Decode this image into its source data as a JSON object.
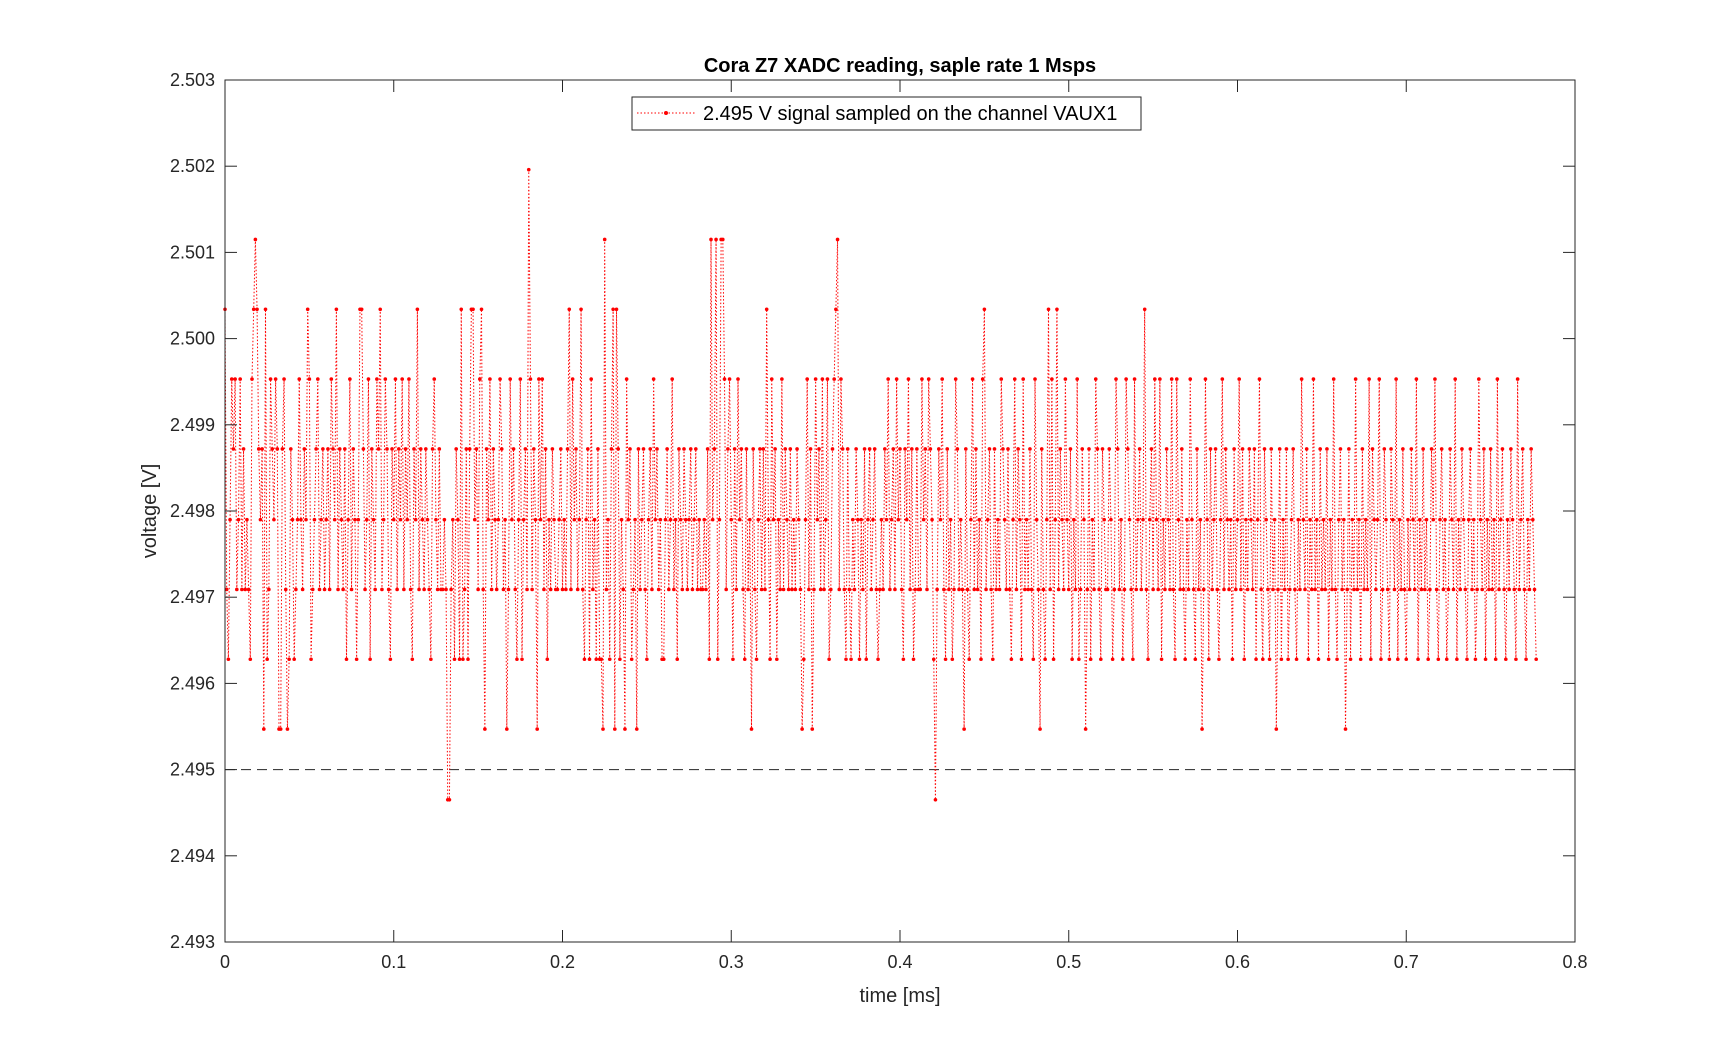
{
  "chart_data": {
    "type": "line",
    "title": "Cora Z7 XADC reading, saple rate 1 Msps",
    "xlabel": "time [ms]",
    "ylabel": "voltage [V]",
    "xlim": [
      0,
      0.8
    ],
    "ylim": [
      2.493,
      2.503
    ],
    "xticks": [
      "0",
      "0.1",
      "0.2",
      "0.3",
      "0.4",
      "0.5",
      "0.6",
      "0.7",
      "0.8"
    ],
    "yticks": [
      "2.493",
      "2.494",
      "2.495",
      "2.496",
      "2.497",
      "2.498",
      "2.499",
      "2.500",
      "2.501",
      "2.502",
      "2.503"
    ],
    "grid": false,
    "legend_position": "top-center",
    "reference_line": {
      "y": 2.495,
      "style": "dashed",
      "color": "#262626"
    },
    "series": [
      {
        "name": "2.495 V signal sampled on the channel VAUX1",
        "color": "#ff0000",
        "line_style": "dotted",
        "marker": "point",
        "x_start": 0,
        "x_step": 0.001,
        "values": [
          2.50034,
          2.49709,
          2.49628,
          2.4979,
          2.49953,
          2.49872,
          2.49953,
          2.49709,
          2.4979,
          2.49953,
          2.49709,
          2.49872,
          2.49709,
          2.4979,
          2.49709,
          2.49628,
          2.49953,
          2.50034,
          2.50115,
          2.50034,
          2.49872,
          2.4979,
          2.49872,
          2.49547,
          2.50034,
          2.49628,
          2.49709,
          2.49953,
          2.49872,
          2.4979,
          2.49953,
          2.49872,
          2.49547,
          2.49547,
          2.49872,
          2.49953,
          2.49709,
          2.49547,
          2.49628,
          2.49872,
          2.4979,
          2.49628,
          2.49709,
          2.4979,
          2.49953,
          2.4979,
          2.49709,
          2.49872,
          2.4979,
          2.50034,
          2.49953,
          2.49628,
          2.49709,
          2.4979,
          2.49872,
          2.49953,
          2.49709,
          2.4979,
          2.49872,
          2.49709,
          2.4979,
          2.49872,
          2.49709,
          2.49953,
          2.49872,
          2.4979,
          2.50034,
          2.49709,
          2.49872,
          2.4979,
          2.49709,
          2.49872,
          2.49628,
          2.4979,
          2.49953,
          2.49709,
          2.49872,
          2.4979,
          2.49628,
          2.4979,
          2.50034,
          2.50034,
          2.49872,
          2.49709,
          2.4979,
          2.49953,
          2.49628,
          2.49872,
          2.4979,
          2.49709,
          2.49953,
          2.49872,
          2.50034,
          2.49709,
          2.4979,
          2.49953,
          2.49872,
          2.49709,
          2.49628,
          2.49872,
          2.4979,
          2.49953,
          2.49709,
          2.49872,
          2.4979,
          2.49953,
          2.49709,
          2.49872,
          2.4979,
          2.49953,
          2.49709,
          2.49628,
          2.49872,
          2.4979,
          2.50034,
          2.49709,
          2.49872,
          2.4979,
          2.49709,
          2.49872,
          2.4979,
          2.49709,
          2.49628,
          2.49872,
          2.49953,
          2.4979,
          2.49709,
          2.49872,
          2.49709,
          2.49709,
          2.4979,
          2.49709,
          2.49465,
          2.49465,
          2.49709,
          2.4979,
          2.49628,
          2.49872,
          2.4979,
          2.49628,
          2.50034,
          2.49628,
          2.49709,
          2.49872,
          2.49628,
          2.49872,
          2.50034,
          2.50034,
          2.4979,
          2.49872,
          2.49709,
          2.49953,
          2.50034,
          2.49709,
          2.49547,
          2.49872,
          2.4979,
          2.49953,
          2.49709,
          2.49872,
          2.4979,
          2.49709,
          2.4979,
          2.49953,
          2.49872,
          2.49709,
          2.4979,
          2.49547,
          2.49709,
          2.49953,
          2.4979,
          2.49872,
          2.49709,
          2.49628,
          2.4979,
          2.49953,
          2.49628,
          2.4979,
          2.49872,
          2.49709,
          2.50196,
          2.49953,
          2.49709,
          2.49872,
          2.4979,
          2.49547,
          2.49953,
          2.4979,
          2.49953,
          2.49709,
          2.49872,
          2.49628,
          2.4979,
          2.49709,
          2.49872,
          2.4979,
          2.49709,
          2.49709,
          2.4979,
          2.49872,
          2.49709,
          2.4979,
          2.49709,
          2.49872,
          2.50034,
          2.49709,
          2.49953,
          2.4979,
          2.49872,
          2.49709,
          2.4979,
          2.50034,
          2.49709,
          2.49628,
          2.4979,
          2.49872,
          2.49628,
          2.49953,
          2.49709,
          2.4979,
          2.49628,
          2.49872,
          2.49628,
          2.49628,
          2.49547,
          2.50115,
          2.49709,
          2.4979,
          2.49628,
          2.49872,
          2.50034,
          2.49547,
          2.50034,
          2.49872,
          2.49628,
          2.4979,
          2.49709,
          2.49547,
          2.49953,
          2.4979,
          2.49872,
          2.49628,
          2.49709,
          2.4979,
          2.49547,
          2.49872,
          2.49709,
          2.4979,
          2.49872,
          2.49709,
          2.49628,
          2.4979,
          2.49872,
          2.49709,
          2.49953,
          2.4979,
          2.49872,
          2.49709,
          2.4979,
          2.49628,
          2.49628,
          2.4979,
          2.49872,
          2.49709,
          2.4979,
          2.49953,
          2.49709,
          2.4979,
          2.49628,
          2.49872,
          2.4979,
          2.49709,
          2.49872,
          2.4979,
          2.49709,
          2.4979,
          2.49872,
          2.49709,
          2.4979,
          2.49872,
          2.49709,
          2.4979,
          2.49709,
          2.49709,
          2.4979,
          2.49709,
          2.49872,
          2.49628,
          2.50115,
          2.4979,
          2.49872,
          2.50115,
          2.49628,
          2.4979,
          2.50115,
          2.50115,
          2.49953,
          2.49709,
          2.49872,
          2.49953,
          2.4979,
          2.49628,
          2.49872,
          2.49709,
          2.49953,
          2.4979,
          2.49872,
          2.49709,
          2.49628,
          2.49872,
          2.49709,
          2.4979,
          2.49547,
          2.49872,
          2.49709,
          2.49628,
          2.4979,
          2.49872,
          2.49709,
          2.49872,
          2.49709,
          2.50034,
          2.4979,
          2.49628,
          2.49953,
          2.4979,
          2.49872,
          2.49628,
          2.4979,
          2.49709,
          2.49953,
          2.49709,
          2.49872,
          2.4979,
          2.49709,
          2.49872,
          2.49709,
          2.4979,
          2.49709,
          2.49872,
          2.4979,
          2.49709,
          2.49547,
          2.49628,
          2.4979,
          2.49953,
          2.49709,
          2.49872,
          2.49547,
          2.49709,
          2.49953,
          2.4979,
          2.49872,
          2.49709,
          2.49953,
          2.49709,
          2.4979,
          2.49953,
          2.49628,
          2.49709,
          2.49872,
          2.49953,
          2.50034,
          2.50115,
          2.49709,
          2.49953,
          2.49872,
          2.49709,
          2.49628,
          2.49872,
          2.49709,
          2.49628,
          2.4979,
          2.49709,
          2.49872,
          2.4979,
          2.49628,
          2.4979,
          2.49709,
          2.49872,
          2.49628,
          2.4979,
          2.49872,
          2.49709,
          2.4979,
          2.49872,
          2.49709,
          2.49628,
          2.49709,
          2.4979,
          2.49709,
          2.49872,
          2.4979,
          2.49953,
          2.49709,
          2.4979,
          2.49872,
          2.49709,
          2.49953,
          2.4979,
          2.49872,
          2.49709,
          2.49628,
          2.49872,
          2.4979,
          2.49953,
          2.49709,
          2.49872,
          2.49628,
          2.49709,
          2.49872,
          2.49709,
          2.49709,
          2.49953,
          2.4979,
          2.49872,
          2.49709,
          2.49953,
          2.49872,
          2.4979,
          2.49628,
          2.49465,
          2.49709,
          2.49872,
          2.4979,
          2.49953,
          2.49709,
          2.49628,
          2.49872,
          2.49709,
          2.4979,
          2.49628,
          2.49709,
          2.49953,
          2.49872,
          2.49709,
          2.4979,
          2.49709,
          2.49547,
          2.49872,
          2.49709,
          2.49628,
          2.4979,
          2.49953,
          2.49709,
          2.49872,
          2.49709,
          2.4979,
          2.49628,
          2.49953,
          2.50034,
          2.49709,
          2.4979,
          2.49872,
          2.49709,
          2.49628,
          2.49872,
          2.49709,
          2.4979,
          2.49709,
          2.49953,
          2.49872,
          2.4979,
          2.49709,
          2.49872,
          2.49709,
          2.49628,
          2.4979,
          2.49953,
          2.49709,
          2.49872,
          2.4979,
          2.49628,
          2.49953,
          2.49709,
          2.4979,
          2.49709,
          2.49872,
          2.49709,
          2.49628,
          2.49953,
          2.4979,
          2.49709,
          2.49547,
          2.49872,
          2.49709,
          2.49628,
          2.4979,
          2.50034,
          2.49709,
          2.49953,
          2.49628,
          2.4979,
          2.50034,
          2.49709,
          2.49872,
          2.4979,
          2.49709,
          2.49953,
          2.4979,
          2.49709,
          2.49872,
          2.49628,
          2.4979,
          2.49709,
          2.49953,
          2.49628,
          2.49709,
          2.49872,
          2.4979,
          2.49547,
          2.49709,
          2.49872,
          2.49628,
          2.4979,
          2.49709,
          2.49953,
          2.49872,
          2.49709,
          2.49628,
          2.49872,
          2.4979,
          2.49709,
          2.49709,
          2.49872,
          2.4979,
          2.49628,
          2.49709,
          2.49953,
          2.49872,
          2.49709,
          2.4979,
          2.49628,
          2.49709,
          2.49953,
          2.49872,
          2.4979,
          2.49709,
          2.49628,
          2.49953,
          2.49709,
          2.4979,
          2.49872,
          2.49709,
          2.4979,
          2.50034,
          2.49709,
          2.49628,
          2.4979,
          2.49872,
          2.49709,
          2.49953,
          2.4979,
          2.49709,
          2.49953,
          2.49628,
          2.4979,
          2.49709,
          2.49872,
          2.4979,
          2.49709,
          2.49953,
          2.49709,
          2.49628,
          2.49953,
          2.4979,
          2.49709,
          2.49872,
          2.49709,
          2.49628,
          2.4979,
          2.49709,
          2.49953,
          2.4979,
          2.49709,
          2.49628,
          2.49872,
          2.49709,
          2.4979,
          2.49547,
          2.49709,
          2.49953,
          2.4979,
          2.49628,
          2.49872,
          2.49709,
          2.4979,
          2.49872,
          2.49709,
          2.49628,
          2.4979,
          2.49953,
          2.49709,
          2.49872,
          2.4979,
          2.49709,
          2.4979,
          2.49628,
          2.49872,
          2.49709,
          2.4979,
          2.49953,
          2.49709,
          2.49872,
          2.49628,
          2.4979,
          2.49709,
          2.49872,
          2.4979,
          2.49709,
          2.49872,
          2.49628,
          2.4979,
          2.49953,
          2.49709,
          2.49628,
          2.49872,
          2.4979,
          2.49709,
          2.49628,
          2.49872,
          2.49709,
          2.4979,
          2.49547,
          2.49709,
          2.49872,
          2.49628,
          2.4979,
          2.49709,
          2.49872,
          2.49628,
          2.49709,
          2.4979,
          2.49872,
          2.49709,
          2.49628,
          2.4979,
          2.49709,
          2.49953,
          2.4979,
          2.49709,
          2.49872,
          2.49628,
          2.4979,
          2.49709,
          2.49953,
          2.49709,
          2.4979,
          2.49628,
          2.49872,
          2.49709,
          2.4979,
          2.49709,
          2.49872,
          2.49628,
          2.4979,
          2.49709,
          2.49953,
          2.49709,
          2.49628,
          2.4979,
          2.49872,
          2.49709,
          2.4979,
          2.49547,
          2.49709,
          2.49872,
          2.49628,
          2.4979,
          2.49709,
          2.49953,
          2.49709,
          2.4979,
          2.49628,
          2.49872,
          2.49709,
          2.4979,
          2.49709,
          2.49953,
          2.49628,
          2.49872,
          2.4979,
          2.49709,
          2.4979,
          2.49953,
          2.49628,
          2.49709,
          2.49872,
          2.4979,
          2.49709,
          2.49628,
          2.49872,
          2.4979,
          2.49709,
          2.49953,
          2.49628,
          2.4979,
          2.49709,
          2.49872,
          2.49709,
          2.49628,
          2.4979,
          2.49709,
          2.49872,
          2.4979,
          2.49709,
          2.49953,
          2.49628,
          2.4979,
          2.49709,
          2.49872,
          2.49709,
          2.4979,
          2.49628,
          2.49709,
          2.49872,
          2.4979,
          2.49953,
          2.49709,
          2.49628,
          2.4979,
          2.49872,
          2.49709,
          2.4979,
          2.49628,
          2.49709,
          2.49872,
          2.4979,
          2.49709,
          2.49953,
          2.49628,
          2.4979,
          2.49709,
          2.49872,
          2.4979,
          2.49709,
          2.49628,
          2.4979,
          2.49872,
          2.49709,
          2.4979,
          2.49628,
          2.49709,
          2.49953,
          2.4979,
          2.49709,
          2.49872,
          2.49628,
          2.4979,
          2.49709,
          2.49872,
          2.49709,
          2.4979,
          2.49628,
          2.49953,
          2.49709,
          2.4979,
          2.49872,
          2.49709,
          2.49628,
          2.4979,
          2.49709,
          2.49872,
          2.4979,
          2.49709,
          2.49628,
          2.49953,
          2.49709,
          2.4979,
          2.49872,
          2.49709,
          2.49628,
          2.4979,
          2.49709,
          2.49872,
          2.4979,
          2.49709,
          2.49628
        ]
      }
    ]
  }
}
